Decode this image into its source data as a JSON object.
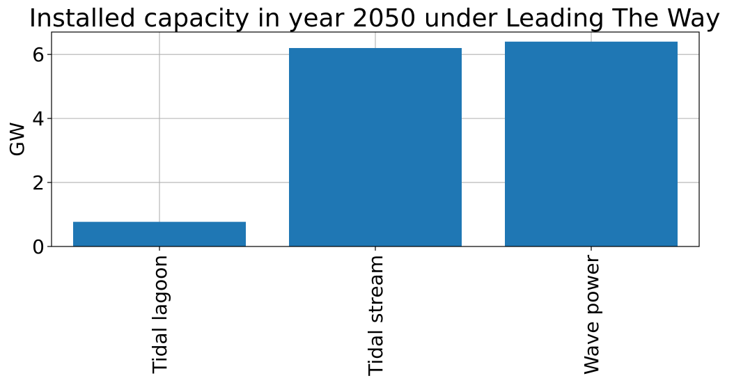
{
  "chart_data": {
    "type": "bar",
    "title": "Installed capacity in year 2050 under Leading The Way",
    "xlabel": "",
    "ylabel": "GW",
    "categories": [
      "Tidal lagoon",
      "Tidal stream",
      "Wave power"
    ],
    "values": [
      0.77,
      6.2,
      6.4
    ],
    "ylim": [
      0,
      6.7
    ],
    "yticks": [
      0,
      2,
      4,
      6
    ],
    "grid": true,
    "bar_color": "#1f77b4",
    "x_tick_rotation": "vertical"
  }
}
